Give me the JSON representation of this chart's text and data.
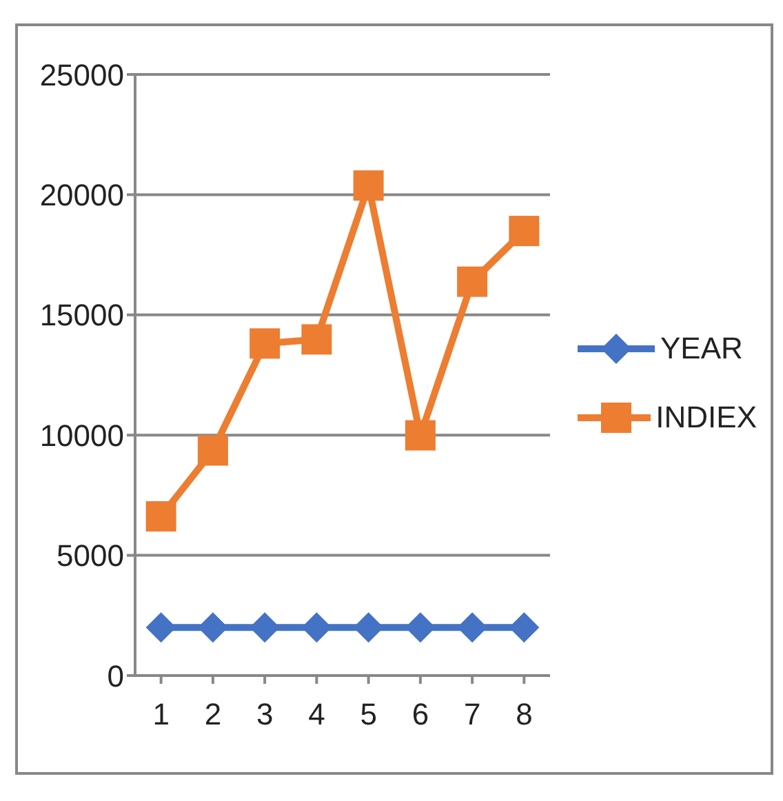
{
  "chart_data": {
    "type": "line",
    "categories": [
      "1",
      "2",
      "3",
      "4",
      "5",
      "6",
      "7",
      "8"
    ],
    "series": [
      {
        "name": "YEAR",
        "color": "#4472c4",
        "values": [
          2000,
          2000,
          2000,
          2000,
          2000,
          2000,
          2000,
          2000
        ],
        "marker": "diamond"
      },
      {
        "name": "INDIEX",
        "color": "#ed7d31",
        "values": [
          6620,
          9360,
          13810,
          13980,
          20380,
          9990,
          16380,
          18490
        ],
        "marker": "square"
      }
    ],
    "ylim": [
      0,
      25000
    ],
    "yticks": [
      0,
      5000,
      10000,
      15000,
      20000,
      25000
    ],
    "grid": "y",
    "legend": "right"
  }
}
